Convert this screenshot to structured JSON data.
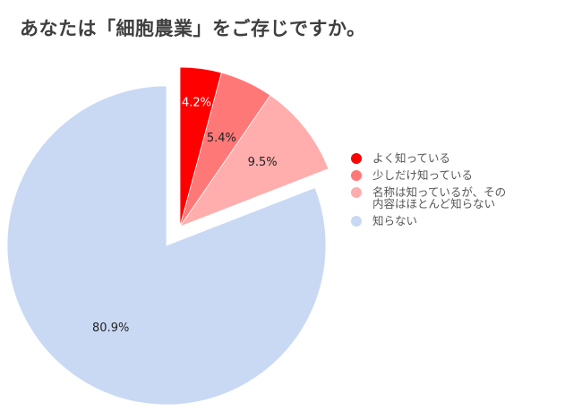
{
  "chart_data": {
    "type": "pie",
    "title": "あなたは「細胞農業」をご存じですか。",
    "slices": [
      {
        "label": "よく知っている",
        "value": 4.2,
        "value_label": "4.2%",
        "color": "#ff0000",
        "label_color": "#ffffff",
        "exploded": true
      },
      {
        "label": "少しだけ知っている",
        "value": 5.4,
        "value_label": "5.4%",
        "color": "#ff7878",
        "label_color": "#222222",
        "exploded": true
      },
      {
        "label": "名称は知っているが、その\n内容はほとんど知らない",
        "value": 9.5,
        "value_label": "9.5%",
        "color": "#ffadad",
        "label_color": "#222222",
        "exploded": true
      },
      {
        "label": "知らない",
        "value": 80.9,
        "value_label": "80.9%",
        "color": "#c9d9f4",
        "label_color": "#222222",
        "exploded": false
      }
    ],
    "legend_position": "right"
  }
}
